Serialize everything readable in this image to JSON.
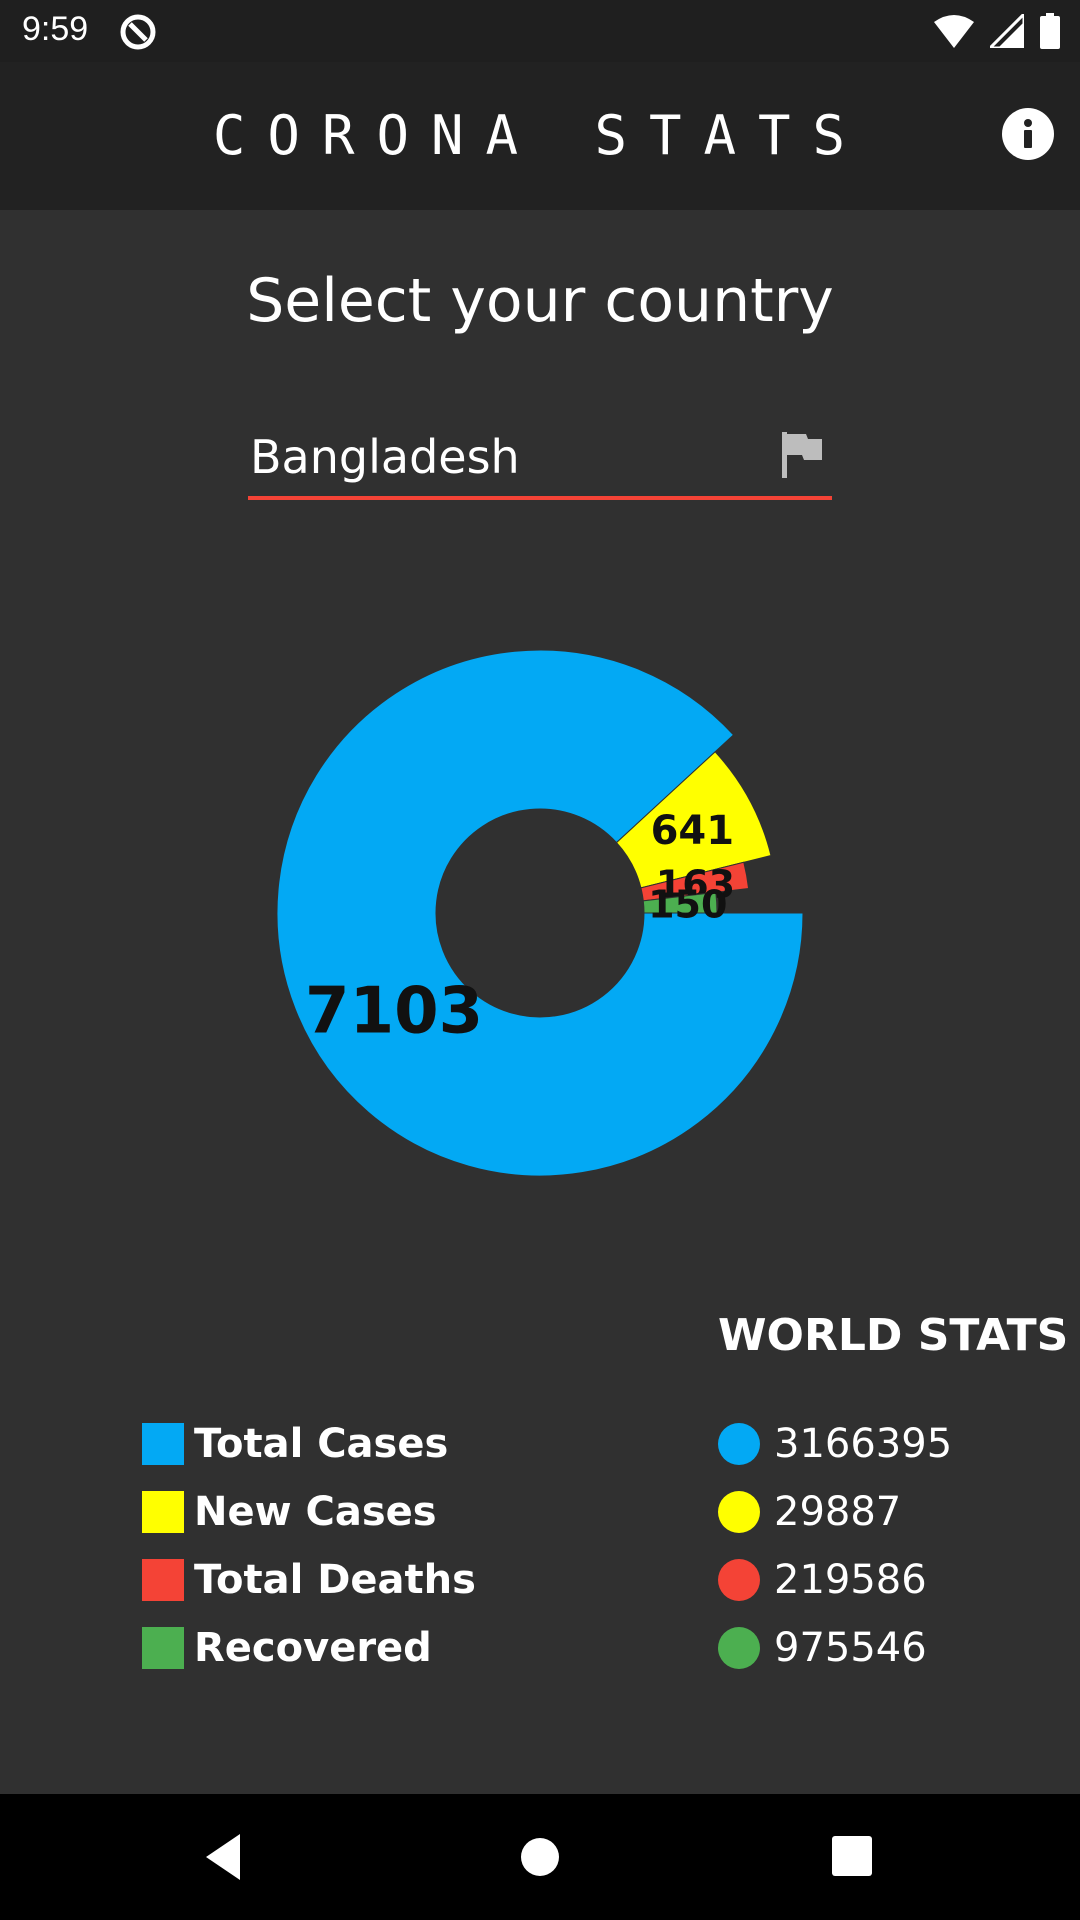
{
  "status_bar": {
    "time": "9:59",
    "icons": [
      "app-notification-icon",
      "wifi-icon",
      "cell-signal-icon",
      "battery-icon"
    ]
  },
  "app_bar": {
    "title": "CORONA STATS",
    "info_icon": "info-icon"
  },
  "selector": {
    "heading": "Select your country",
    "country": "Bangladesh",
    "icon": "flag-icon",
    "underline_color": "#f44336"
  },
  "chart_data": {
    "type": "pie",
    "style": "donut",
    "categories": [
      "Total Cases",
      "New Cases",
      "Total Deaths",
      "Recovered"
    ],
    "values": [
      7103,
      641,
      163,
      150
    ],
    "colors": [
      "#03a9f4",
      "#ffff00",
      "#f44336",
      "#4caf50"
    ],
    "labels": [
      "7103",
      "641",
      "163",
      "150"
    ]
  },
  "legend": [
    {
      "label": "Total Cases",
      "color": "#03a9f4"
    },
    {
      "label": "New Cases",
      "color": "#ffff00"
    },
    {
      "label": "Total Deaths",
      "color": "#f44336"
    },
    {
      "label": "Recovered",
      "color": "#4caf50"
    }
  ],
  "world_stats": {
    "title": "WORLD STATS",
    "items": [
      {
        "value": "3166395",
        "color": "#03a9f4"
      },
      {
        "value": "29887",
        "color": "#ffff00"
      },
      {
        "value": "219586",
        "color": "#f44336"
      },
      {
        "value": "975546",
        "color": "#4caf50"
      }
    ]
  },
  "nav_bar": {
    "icons": [
      "back-icon",
      "home-icon",
      "recents-icon"
    ]
  }
}
